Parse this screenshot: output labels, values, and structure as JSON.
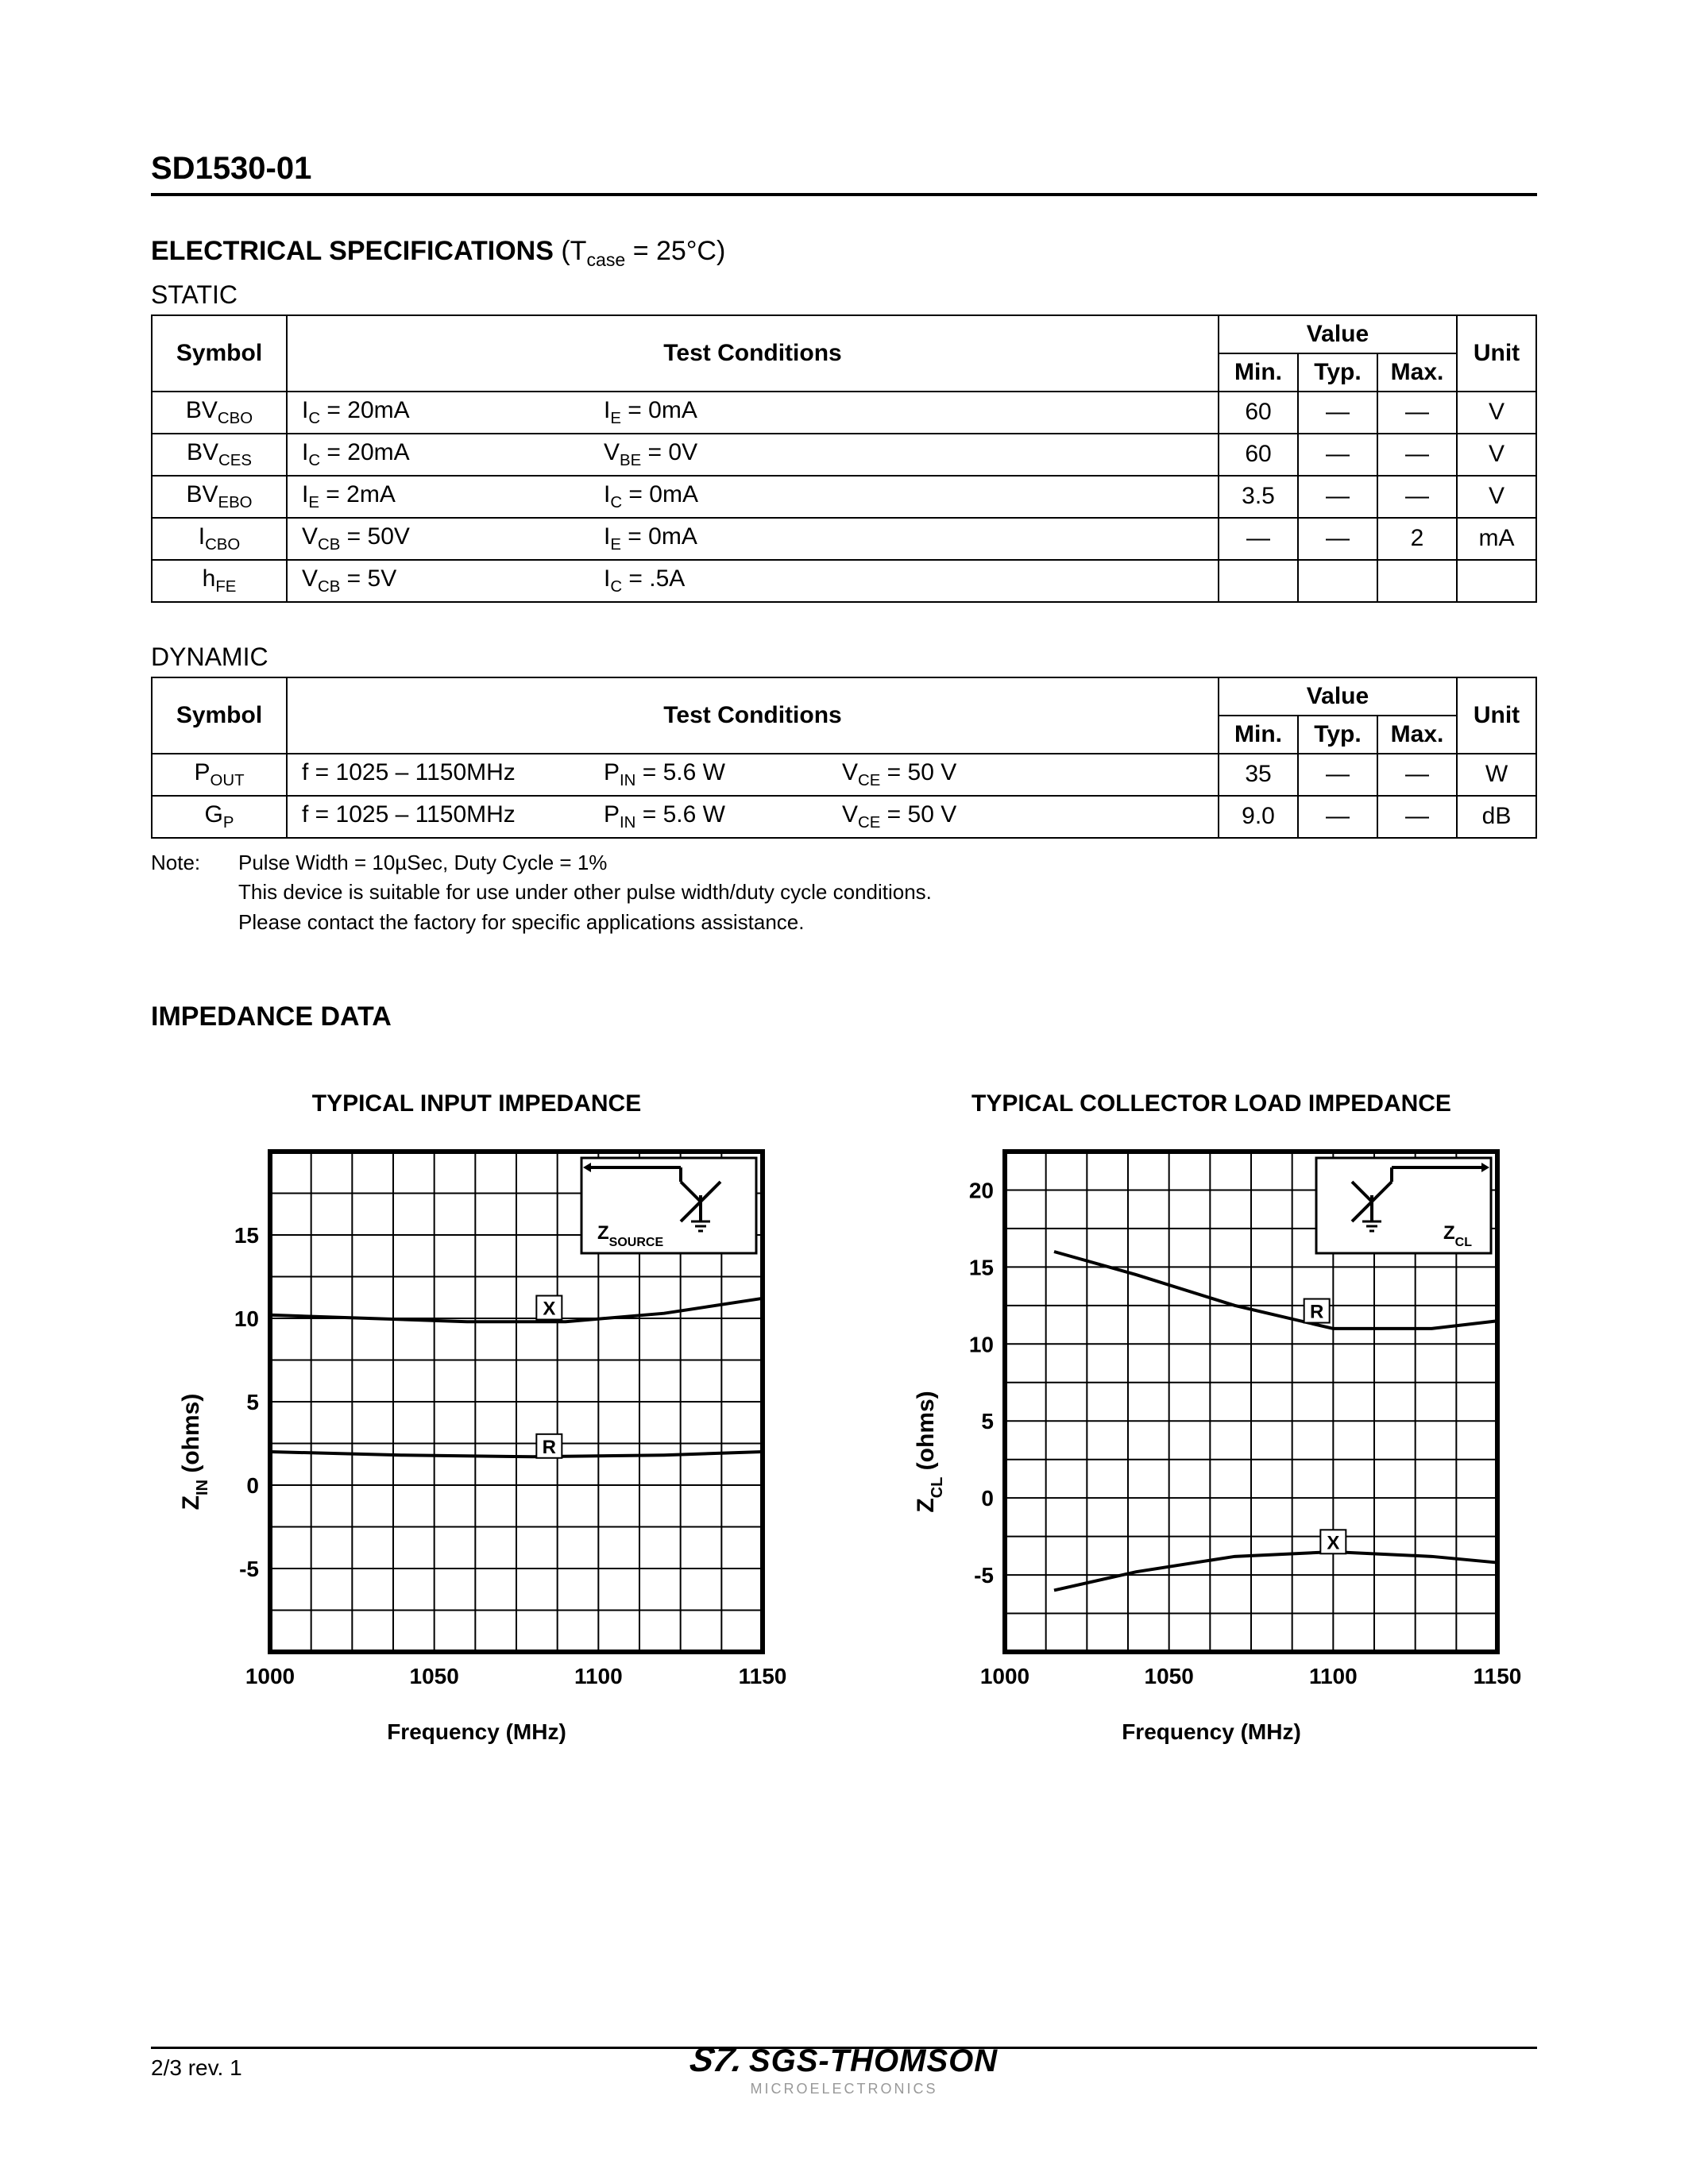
{
  "part_number": "SD1530-01",
  "spec_title": "ELECTRICAL SPECIFICATIONS",
  "spec_condition_html": "(T<span class='sub'>case</span> = 25°C)",
  "static_label": "STATIC",
  "dynamic_label": "DYNAMIC",
  "headers": {
    "symbol": "Symbol",
    "test_conditions": "Test Conditions",
    "value": "Value",
    "min": "Min.",
    "typ": "Typ.",
    "max": "Max.",
    "unit": "Unit"
  },
  "static_rows": [
    {
      "sym": "BV<span class='sub'>CBO</span>",
      "c1": "I<span class='sub'>C</span> = 20mA",
      "c2": "I<span class='sub'>E</span> = 0mA",
      "c3": "",
      "min": "60",
      "typ": "—",
      "max": "—",
      "unit": "V"
    },
    {
      "sym": "BV<span class='sub'>CES</span>",
      "c1": "I<span class='sub'>C</span> = 20mA",
      "c2": "V<span class='sub'>BE</span> = 0V",
      "c3": "",
      "min": "60",
      "typ": "—",
      "max": "—",
      "unit": "V"
    },
    {
      "sym": "BV<span class='sub'>EBO</span>",
      "c1": "I<span class='sub'>E</span> = 2mA",
      "c2": "I<span class='sub'>C</span> = 0mA",
      "c3": "",
      "min": "3.5",
      "typ": "—",
      "max": "—",
      "unit": "V"
    },
    {
      "sym": "I<span class='sub'>CBO</span>",
      "c1": "V<span class='sub'>CB</span> = 50V",
      "c2": "I<span class='sub'>E</span> = 0mA",
      "c3": "",
      "min": "—",
      "typ": "—",
      "max": "2",
      "unit": "mA"
    },
    {
      "sym": "h<span class='sub'>FE</span>",
      "c1": "V<span class='sub'>CB</span> = 5V",
      "c2": "I<span class='sub'>C</span> = .5A",
      "c3": "",
      "min": "",
      "typ": "",
      "max": "",
      "unit": ""
    }
  ],
  "dynamic_rows": [
    {
      "sym": "P<span class='sub'>OUT</span>",
      "c1": "f = 1025 – 1150MHz",
      "c2": "P<span class='sub'>IN</span> = 5.6 W",
      "c3": "V<span class='sub'>CE</span> = 50 V",
      "min": "35",
      "typ": "—",
      "max": "—",
      "unit": "W"
    },
    {
      "sym": "G<span class='sub'>P</span>",
      "c1": "f = 1025 – 1150MHz",
      "c2": "P<span class='sub'>IN</span> = 5.6 W",
      "c3": "V<span class='sub'>CE</span> = 50 V",
      "min": "9.0",
      "typ": "—",
      "max": "—",
      "unit": "dB"
    }
  ],
  "note_label": "Note:",
  "note_lines": [
    "Pulse Width = 10µSec, Duty Cycle = 1%",
    "This device is suitable for use under other pulse width/duty cycle conditions.",
    "Please contact the factory for specific applications assistance."
  ],
  "impedance_title": "IMPEDANCE DATA",
  "chart1": {
    "title": "TYPICAL INPUT IMPEDANCE",
    "ylabel": "Z<tspan baseline-shift='sub' font-size='20'>IN</tspan>  (ohms)",
    "xlabel": "Frequency (MHz)",
    "inset_label": "Z<tspan baseline-shift='sub' font-size='16'>SOURCE</tspan>",
    "x_ticks": [
      1000,
      1050,
      1100,
      1150
    ],
    "y_ticks": [
      -5,
      0,
      5,
      10,
      15
    ],
    "xlim": [
      1000,
      1150
    ],
    "ylim": [
      -10,
      20
    ],
    "grid_nx": 12,
    "grid_ny": 12,
    "line_width": 4,
    "border_width": 6,
    "series": [
      {
        "label": "X",
        "label_x": 1085,
        "label_y": 10.5,
        "points": [
          [
            1000,
            10.2
          ],
          [
            1030,
            10.0
          ],
          [
            1060,
            9.8
          ],
          [
            1090,
            9.8
          ],
          [
            1120,
            10.3
          ],
          [
            1150,
            11.2
          ]
        ]
      },
      {
        "label": "R",
        "label_x": 1085,
        "label_y": 2.2,
        "points": [
          [
            1000,
            2.0
          ],
          [
            1040,
            1.8
          ],
          [
            1080,
            1.7
          ],
          [
            1120,
            1.8
          ],
          [
            1150,
            2.0
          ]
        ]
      }
    ]
  },
  "chart2": {
    "title": "TYPICAL COLLECTOR LOAD IMPEDANCE",
    "ylabel": "Z<tspan baseline-shift='sub' font-size='20'>CL</tspan>  (ohms)",
    "xlabel": "Frequency (MHz)",
    "inset_label": "Z<tspan baseline-shift='sub' font-size='16'>CL</tspan>",
    "x_ticks": [
      1000,
      1050,
      1100,
      1150
    ],
    "y_ticks": [
      -5,
      0,
      5,
      10,
      15,
      20
    ],
    "xlim": [
      1000,
      1150
    ],
    "ylim": [
      -10,
      22.5
    ],
    "grid_nx": 12,
    "grid_ny": 13,
    "line_width": 4,
    "border_width": 6,
    "series": [
      {
        "label": "R",
        "label_x": 1095,
        "label_y": 12,
        "points": [
          [
            1015,
            16.0
          ],
          [
            1040,
            14.5
          ],
          [
            1070,
            12.5
          ],
          [
            1100,
            11.0
          ],
          [
            1130,
            11.0
          ],
          [
            1150,
            11.5
          ]
        ]
      },
      {
        "label": "X",
        "label_x": 1100,
        "label_y": -3,
        "points": [
          [
            1015,
            -6.0
          ],
          [
            1040,
            -4.8
          ],
          [
            1070,
            -3.8
          ],
          [
            1100,
            -3.5
          ],
          [
            1130,
            -3.8
          ],
          [
            1150,
            -4.2
          ]
        ]
      }
    ]
  },
  "footer": {
    "page": "2/3  rev. 1",
    "logo_main": "SGS-THOMSON",
    "logo_sub": "MICROELECTRONICS"
  },
  "colors": {
    "fg": "#000000",
    "bg": "#ffffff"
  }
}
